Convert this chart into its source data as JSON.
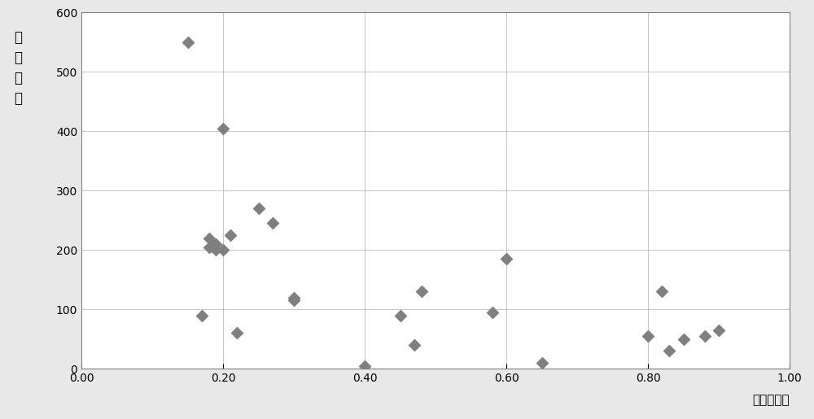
{
  "x_values": [
    0.15,
    0.17,
    0.18,
    0.18,
    0.19,
    0.19,
    0.2,
    0.2,
    0.21,
    0.22,
    0.25,
    0.27,
    0.3,
    0.3,
    0.4,
    0.45,
    0.47,
    0.48,
    0.58,
    0.6,
    0.65,
    0.8,
    0.82,
    0.83,
    0.85,
    0.88,
    0.9
  ],
  "y_values": [
    550,
    90,
    220,
    205,
    210,
    200,
    200,
    405,
    225,
    60,
    270,
    245,
    120,
    115,
    5,
    90,
    40,
    130,
    95,
    185,
    10,
    55,
    130,
    30,
    50,
    55,
    65
  ],
  "marker": "D",
  "marker_color": "#7f7f7f",
  "marker_size": 60,
  "xlim": [
    0.0,
    1.0
  ],
  "ylim": [
    0,
    600
  ],
  "xticks": [
    0.0,
    0.2,
    0.4,
    0.6,
    0.8,
    1.0
  ],
  "xtick_labels": [
    "0.00",
    "0.20",
    "0.40",
    "0.60",
    "0.80",
    "1.00"
  ],
  "yticks": [
    0,
    100,
    200,
    300,
    400,
    500,
    600
  ],
  "xlabel": "非寄主比例",
  "ylabel_line1": "单",
  "ylabel_line2": "位",
  "ylabel_line3": "：",
  "ylabel_line4": "个",
  "grid_color": "#b0b0b0",
  "grid_linestyle": "-",
  "grid_linewidth": 0.5,
  "plot_bg_color": "#ffffff",
  "figure_facecolor": "#e8e8e8",
  "ylabel_fontsize": 12,
  "xlabel_fontsize": 11,
  "tick_fontsize": 10,
  "border_color": "#808080"
}
